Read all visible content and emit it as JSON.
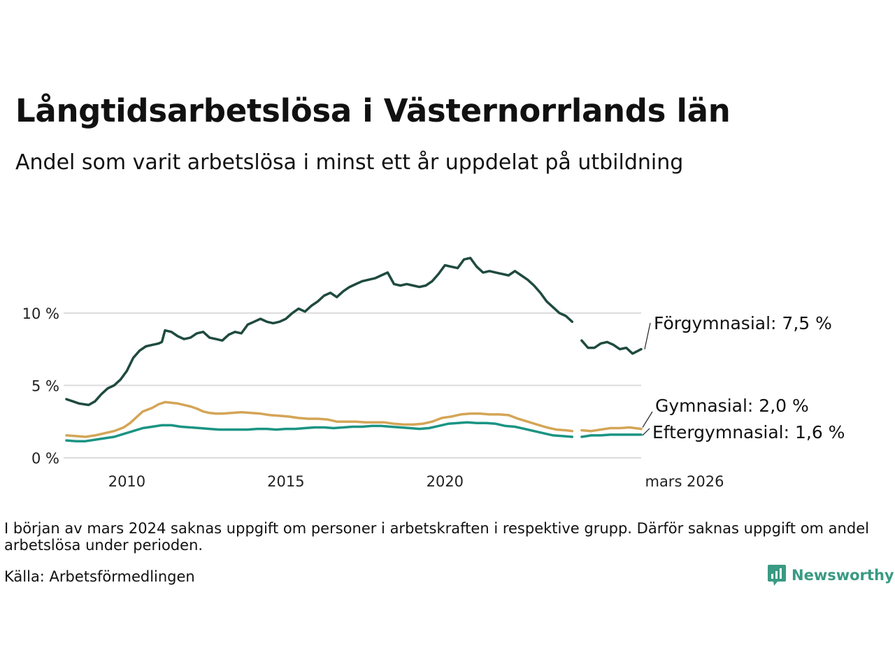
{
  "title": "Långtidsarbetslösa i Västernorrlands län",
  "subtitle": "Andel som varit arbetslösa i minst ett år uppdelat på utbildning",
  "note": "I början av mars 2024 saknas uppgift om personer i arbetskraften i respektive grupp. Därför saknas uppgift om andel arbetslösa under perioden.",
  "source": "Källa: Arbetsförmedlingen",
  "brand": {
    "name": "Newsworthy",
    "icon": "bar-chart-logo-icon",
    "color": "#3a9a83"
  },
  "chart_data": {
    "type": "line",
    "title": "Långtidsarbetslösa i Västernorrlands län",
    "xlabel": "",
    "ylabel": "",
    "xlim": [
      2008.1,
      2026.17
    ],
    "ylim": [
      0,
      14
    ],
    "yticks": [
      0,
      5,
      10
    ],
    "ytick_labels": [
      "0 %",
      "5 %",
      "10 %"
    ],
    "xticks": [
      2010,
      2015,
      2020,
      2026.17
    ],
    "xtick_labels": [
      "2010",
      "2015",
      "2020",
      "mars 2026"
    ],
    "grid": true,
    "gap": [
      2024.0,
      2024.3
    ],
    "series": [
      {
        "name": "Förgymnasial",
        "label": "Förgymnasial: 7,5 %",
        "color": "#1f4a3f",
        "points": [
          [
            2008.1,
            4.05
          ],
          [
            2008.3,
            3.9
          ],
          [
            2008.5,
            3.75
          ],
          [
            2008.8,
            3.65
          ],
          [
            2009.0,
            3.9
          ],
          [
            2009.2,
            4.4
          ],
          [
            2009.4,
            4.8
          ],
          [
            2009.6,
            5.0
          ],
          [
            2009.8,
            5.4
          ],
          [
            2010.0,
            6.0
          ],
          [
            2010.2,
            6.9
          ],
          [
            2010.4,
            7.4
          ],
          [
            2010.6,
            7.7
          ],
          [
            2010.8,
            7.8
          ],
          [
            2011.0,
            7.9
          ],
          [
            2011.1,
            8.0
          ],
          [
            2011.2,
            8.8
          ],
          [
            2011.4,
            8.7
          ],
          [
            2011.6,
            8.4
          ],
          [
            2011.8,
            8.2
          ],
          [
            2012.0,
            8.3
          ],
          [
            2012.2,
            8.6
          ],
          [
            2012.4,
            8.7
          ],
          [
            2012.6,
            8.3
          ],
          [
            2012.8,
            8.2
          ],
          [
            2013.0,
            8.1
          ],
          [
            2013.2,
            8.5
          ],
          [
            2013.4,
            8.7
          ],
          [
            2013.6,
            8.6
          ],
          [
            2013.8,
            9.2
          ],
          [
            2014.0,
            9.4
          ],
          [
            2014.2,
            9.6
          ],
          [
            2014.4,
            9.4
          ],
          [
            2014.6,
            9.3
          ],
          [
            2014.8,
            9.4
          ],
          [
            2015.0,
            9.6
          ],
          [
            2015.2,
            10.0
          ],
          [
            2015.4,
            10.3
          ],
          [
            2015.6,
            10.1
          ],
          [
            2015.8,
            10.5
          ],
          [
            2016.0,
            10.8
          ],
          [
            2016.2,
            11.2
          ],
          [
            2016.4,
            11.4
          ],
          [
            2016.6,
            11.1
          ],
          [
            2016.8,
            11.5
          ],
          [
            2017.0,
            11.8
          ],
          [
            2017.2,
            12.0
          ],
          [
            2017.4,
            12.2
          ],
          [
            2017.6,
            12.3
          ],
          [
            2017.8,
            12.4
          ],
          [
            2018.0,
            12.6
          ],
          [
            2018.2,
            12.8
          ],
          [
            2018.4,
            12.0
          ],
          [
            2018.6,
            11.9
          ],
          [
            2018.8,
            12.0
          ],
          [
            2019.0,
            11.9
          ],
          [
            2019.2,
            11.8
          ],
          [
            2019.4,
            11.9
          ],
          [
            2019.6,
            12.2
          ],
          [
            2019.8,
            12.7
          ],
          [
            2020.0,
            13.3
          ],
          [
            2020.2,
            13.2
          ],
          [
            2020.4,
            13.1
          ],
          [
            2020.6,
            13.7
          ],
          [
            2020.8,
            13.8
          ],
          [
            2021.0,
            13.2
          ],
          [
            2021.2,
            12.8
          ],
          [
            2021.4,
            12.9
          ],
          [
            2021.6,
            12.8
          ],
          [
            2021.8,
            12.7
          ],
          [
            2022.0,
            12.6
          ],
          [
            2022.2,
            12.9
          ],
          [
            2022.4,
            12.6
          ],
          [
            2022.6,
            12.3
          ],
          [
            2022.8,
            11.9
          ],
          [
            2023.0,
            11.4
          ],
          [
            2023.2,
            10.8
          ],
          [
            2023.4,
            10.4
          ],
          [
            2023.6,
            10.0
          ],
          [
            2023.8,
            9.8
          ],
          [
            2024.0,
            9.4
          ],
          [
            2024.3,
            8.1
          ],
          [
            2024.5,
            7.6
          ],
          [
            2024.7,
            7.6
          ],
          [
            2024.9,
            7.9
          ],
          [
            2025.1,
            8.0
          ],
          [
            2025.3,
            7.8
          ],
          [
            2025.5,
            7.5
          ],
          [
            2025.7,
            7.6
          ],
          [
            2025.9,
            7.2
          ],
          [
            2026.17,
            7.5
          ]
        ]
      },
      {
        "name": "Gymnasial",
        "label": "Gymnasial: 2,0 %",
        "color": "#d4a556",
        "points": [
          [
            2008.1,
            1.55
          ],
          [
            2008.4,
            1.5
          ],
          [
            2008.7,
            1.45
          ],
          [
            2009.0,
            1.55
          ],
          [
            2009.3,
            1.7
          ],
          [
            2009.6,
            1.85
          ],
          [
            2009.9,
            2.1
          ],
          [
            2010.1,
            2.4
          ],
          [
            2010.3,
            2.8
          ],
          [
            2010.5,
            3.2
          ],
          [
            2010.8,
            3.45
          ],
          [
            2011.0,
            3.7
          ],
          [
            2011.2,
            3.85
          ],
          [
            2011.4,
            3.8
          ],
          [
            2011.6,
            3.75
          ],
          [
            2011.8,
            3.65
          ],
          [
            2012.0,
            3.55
          ],
          [
            2012.2,
            3.4
          ],
          [
            2012.4,
            3.2
          ],
          [
            2012.6,
            3.1
          ],
          [
            2012.8,
            3.05
          ],
          [
            2013.0,
            3.05
          ],
          [
            2013.3,
            3.1
          ],
          [
            2013.6,
            3.15
          ],
          [
            2013.9,
            3.1
          ],
          [
            2014.2,
            3.05
          ],
          [
            2014.5,
            2.95
          ],
          [
            2014.8,
            2.9
          ],
          [
            2015.1,
            2.85
          ],
          [
            2015.4,
            2.75
          ],
          [
            2015.7,
            2.7
          ],
          [
            2016.0,
            2.7
          ],
          [
            2016.3,
            2.65
          ],
          [
            2016.6,
            2.5
          ],
          [
            2016.9,
            2.5
          ],
          [
            2017.2,
            2.5
          ],
          [
            2017.5,
            2.45
          ],
          [
            2017.8,
            2.45
          ],
          [
            2018.1,
            2.45
          ],
          [
            2018.4,
            2.35
          ],
          [
            2018.7,
            2.3
          ],
          [
            2019.0,
            2.3
          ],
          [
            2019.3,
            2.35
          ],
          [
            2019.6,
            2.5
          ],
          [
            2019.9,
            2.75
          ],
          [
            2020.2,
            2.85
          ],
          [
            2020.5,
            3.0
          ],
          [
            2020.8,
            3.05
          ],
          [
            2021.1,
            3.05
          ],
          [
            2021.4,
            3.0
          ],
          [
            2021.7,
            3.0
          ],
          [
            2022.0,
            2.95
          ],
          [
            2022.3,
            2.7
          ],
          [
            2022.6,
            2.5
          ],
          [
            2022.9,
            2.3
          ],
          [
            2023.2,
            2.1
          ],
          [
            2023.5,
            1.95
          ],
          [
            2023.8,
            1.9
          ],
          [
            2024.0,
            1.85
          ],
          [
            2024.3,
            1.9
          ],
          [
            2024.6,
            1.85
          ],
          [
            2024.9,
            1.95
          ],
          [
            2025.2,
            2.05
          ],
          [
            2025.5,
            2.05
          ],
          [
            2025.8,
            2.1
          ],
          [
            2026.17,
            2.0
          ]
        ]
      },
      {
        "name": "Eftergymnasial",
        "label": "Eftergymnasial: 1,6 %",
        "color": "#1b9484",
        "points": [
          [
            2008.1,
            1.2
          ],
          [
            2008.4,
            1.15
          ],
          [
            2008.7,
            1.15
          ],
          [
            2009.0,
            1.25
          ],
          [
            2009.3,
            1.35
          ],
          [
            2009.6,
            1.45
          ],
          [
            2009.9,
            1.65
          ],
          [
            2010.2,
            1.85
          ],
          [
            2010.5,
            2.05
          ],
          [
            2010.8,
            2.15
          ],
          [
            2011.1,
            2.25
          ],
          [
            2011.4,
            2.25
          ],
          [
            2011.7,
            2.15
          ],
          [
            2012.0,
            2.1
          ],
          [
            2012.3,
            2.05
          ],
          [
            2012.6,
            2.0
          ],
          [
            2012.9,
            1.95
          ],
          [
            2013.2,
            1.95
          ],
          [
            2013.5,
            1.95
          ],
          [
            2013.8,
            1.95
          ],
          [
            2014.1,
            2.0
          ],
          [
            2014.4,
            2.0
          ],
          [
            2014.7,
            1.95
          ],
          [
            2015.0,
            2.0
          ],
          [
            2015.3,
            2.0
          ],
          [
            2015.6,
            2.05
          ],
          [
            2015.9,
            2.1
          ],
          [
            2016.2,
            2.1
          ],
          [
            2016.5,
            2.05
          ],
          [
            2016.8,
            2.1
          ],
          [
            2017.1,
            2.15
          ],
          [
            2017.4,
            2.15
          ],
          [
            2017.7,
            2.2
          ],
          [
            2018.0,
            2.2
          ],
          [
            2018.3,
            2.15
          ],
          [
            2018.6,
            2.1
          ],
          [
            2018.9,
            2.05
          ],
          [
            2019.2,
            2.0
          ],
          [
            2019.5,
            2.05
          ],
          [
            2019.8,
            2.2
          ],
          [
            2020.1,
            2.35
          ],
          [
            2020.4,
            2.4
          ],
          [
            2020.7,
            2.45
          ],
          [
            2021.0,
            2.4
          ],
          [
            2021.3,
            2.4
          ],
          [
            2021.6,
            2.35
          ],
          [
            2021.9,
            2.2
          ],
          [
            2022.2,
            2.15
          ],
          [
            2022.5,
            2.0
          ],
          [
            2022.8,
            1.85
          ],
          [
            2023.1,
            1.7
          ],
          [
            2023.4,
            1.55
          ],
          [
            2023.7,
            1.5
          ],
          [
            2024.0,
            1.45
          ],
          [
            2024.3,
            1.45
          ],
          [
            2024.6,
            1.55
          ],
          [
            2024.9,
            1.55
          ],
          [
            2025.2,
            1.6
          ],
          [
            2025.5,
            1.6
          ],
          [
            2025.8,
            1.6
          ],
          [
            2026.17,
            1.6
          ]
        ]
      }
    ]
  }
}
